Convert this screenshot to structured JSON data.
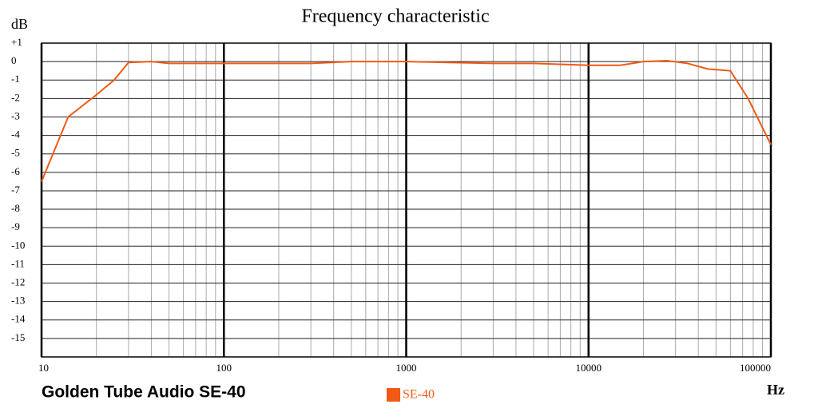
{
  "chart_data": {
    "type": "line",
    "title": "Frequency  characteristic",
    "y_label": "dB",
    "x_label": "Hz",
    "annotation": "Golden Tube Audio SE-40",
    "x": [
      10,
      14,
      20,
      25,
      30,
      40,
      50,
      100,
      300,
      500,
      1000,
      3000,
      5000,
      10000,
      15000,
      20000,
      27000,
      35000,
      45000,
      60000,
      75000,
      100000
    ],
    "series": [
      {
        "name": "SE-40",
        "color": "#f05a14",
        "values": [
          -6.5,
          -3,
          -1.8,
          -1,
          -0.05,
          0,
          -0.1,
          -0.1,
          -0.1,
          0,
          0,
          -0.1,
          -0.1,
          -0.2,
          -0.2,
          0,
          0.05,
          -0.1,
          -0.4,
          -0.5,
          -2,
          -4.5
        ]
      }
    ],
    "xlim": [
      10,
      100000
    ],
    "xticks": [
      10,
      100,
      1000,
      10000,
      100000
    ],
    "xscale": "log",
    "ylim": [
      -16,
      1
    ],
    "yticks": [
      {
        "value": 1,
        "label": "+1"
      },
      0,
      -1,
      -2,
      -3,
      -4,
      -5,
      -6,
      -7,
      -8,
      -9,
      -10,
      -11,
      -12,
      -13,
      -14,
      -15
    ],
    "grid": true,
    "minor_grid": true,
    "legend": "bottom"
  }
}
